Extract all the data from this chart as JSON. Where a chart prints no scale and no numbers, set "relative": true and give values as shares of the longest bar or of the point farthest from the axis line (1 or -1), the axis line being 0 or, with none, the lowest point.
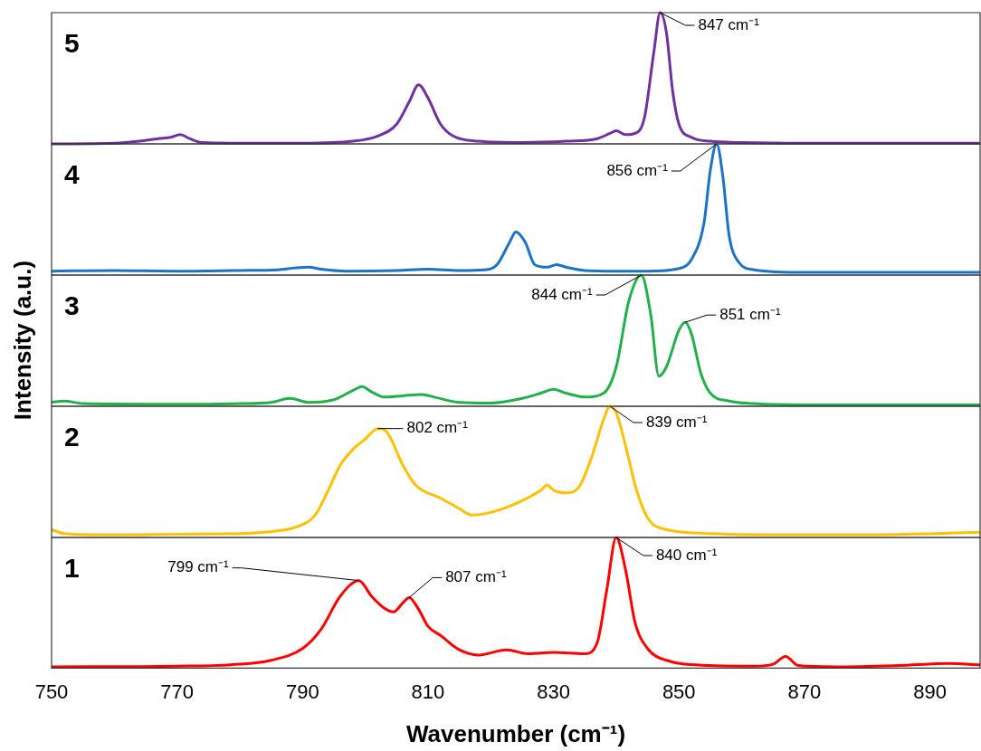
{
  "chart_data": [
    {
      "type": "line",
      "title": "5",
      "relative": true,
      "xlim": [
        750,
        898
      ],
      "tick_labels": false,
      "x": [
        750,
        760,
        764,
        767,
        769,
        770.5,
        772,
        774,
        780,
        790,
        798,
        802,
        805,
        807,
        808.5,
        810,
        812,
        814,
        818,
        825,
        832,
        837,
        839,
        840,
        841.5,
        843,
        844.5,
        846,
        847,
        848,
        849,
        850,
        852,
        855,
        860,
        870,
        898
      ],
      "series": [
        {
          "color": "#7030a0",
          "values": [
            0,
            0.005,
            0.02,
            0.04,
            0.05,
            0.07,
            0.04,
            0.01,
            0.005,
            0.005,
            0.02,
            0.06,
            0.15,
            0.32,
            0.45,
            0.35,
            0.15,
            0.06,
            0.02,
            0.01,
            0.02,
            0.04,
            0.08,
            0.1,
            0.07,
            0.08,
            0.2,
            0.7,
            1,
            0.85,
            0.4,
            0.15,
            0.05,
            0.02,
            0.01,
            0.005,
            0.005
          ]
        }
      ],
      "annotations": [
        {
          "text": "847 cm⁻¹",
          "x": 847,
          "y": 1
        }
      ]
    },
    {
      "type": "line",
      "title": "4",
      "relative": true,
      "xlim": [
        750,
        898
      ],
      "tick_labels": false,
      "x": [
        750,
        760,
        770,
        780,
        786,
        789,
        791,
        793,
        797,
        805,
        810,
        815,
        819,
        821,
        823,
        824,
        825.5,
        827,
        829,
        830.5,
        832,
        835,
        840,
        845,
        850,
        852,
        854,
        855,
        856,
        857,
        858,
        859.5,
        862,
        870,
        880,
        898
      ],
      "series": [
        {
          "color": "#1a73c8",
          "values": [
            0.03,
            0.035,
            0.03,
            0.035,
            0.04,
            0.055,
            0.06,
            0.045,
            0.03,
            0.035,
            0.045,
            0.035,
            0.04,
            0.08,
            0.25,
            0.33,
            0.25,
            0.08,
            0.06,
            0.08,
            0.06,
            0.035,
            0.03,
            0.03,
            0.05,
            0.12,
            0.4,
            0.8,
            1,
            0.75,
            0.3,
            0.1,
            0.04,
            0.02,
            0.02,
            0.02
          ]
        }
      ],
      "annotations": [
        {
          "text": "856 cm⁻¹",
          "x": 856,
          "y": 1
        }
      ]
    },
    {
      "type": "line",
      "title": "3",
      "relative": true,
      "xlim": [
        750,
        898
      ],
      "tick_labels": false,
      "ylabel": "Intensity (a.u.)",
      "x": [
        750,
        752,
        755,
        770,
        780,
        785,
        788,
        791,
        795,
        798,
        799.5,
        801,
        803,
        806,
        809,
        811,
        815,
        820,
        825,
        828,
        830,
        832,
        835,
        838,
        840,
        842,
        844,
        845.5,
        846.8,
        848,
        850,
        851,
        852,
        853.5,
        855,
        858,
        862,
        870,
        898
      ],
      "series": [
        {
          "color": "#22b04b",
          "values": [
            0.03,
            0.04,
            0.02,
            0.015,
            0.02,
            0.03,
            0.06,
            0.03,
            0.05,
            0.12,
            0.15,
            0.11,
            0.07,
            0.08,
            0.09,
            0.07,
            0.03,
            0.025,
            0.06,
            0.1,
            0.13,
            0.1,
            0.07,
            0.1,
            0.3,
            0.8,
            1,
            0.7,
            0.23,
            0.3,
            0.58,
            0.64,
            0.55,
            0.25,
            0.1,
            0.04,
            0.02,
            0.01,
            0.01
          ]
        }
      ],
      "annotations": [
        {
          "text": "844 cm⁻¹",
          "x": 844,
          "y": 1
        },
        {
          "text": "851 cm⁻¹",
          "x": 851,
          "y": 0.64
        }
      ]
    },
    {
      "type": "line",
      "title": "2",
      "relative": true,
      "xlim": [
        750,
        898
      ],
      "tick_labels": false,
      "x": [
        750,
        752,
        760,
        770,
        780,
        786,
        789,
        792,
        794,
        796,
        798,
        800,
        802,
        803.5,
        806,
        808,
        812,
        815,
        817,
        819,
        822,
        825,
        828,
        829,
        830,
        832,
        834,
        836,
        838,
        839,
        840,
        842,
        843,
        845,
        848,
        855,
        870,
        880,
        898
      ],
      "series": [
        {
          "color": "#ffc000",
          "values": [
            0.06,
            0.03,
            0.02,
            0.025,
            0.03,
            0.05,
            0.08,
            0.17,
            0.35,
            0.55,
            0.67,
            0.75,
            0.83,
            0.8,
            0.55,
            0.4,
            0.3,
            0.22,
            0.17,
            0.18,
            0.22,
            0.28,
            0.36,
            0.4,
            0.36,
            0.34,
            0.38,
            0.6,
            0.9,
            1,
            0.95,
            0.6,
            0.4,
            0.15,
            0.06,
            0.03,
            0.02,
            0.02,
            0.04
          ]
        }
      ],
      "annotations": [
        {
          "text": "802 cm⁻¹",
          "x": 802,
          "y": 0.83
        },
        {
          "text": "839 cm⁻¹",
          "x": 839,
          "y": 1
        }
      ]
    },
    {
      "type": "line",
      "title": "1",
      "relative": true,
      "xlim": [
        750,
        898
      ],
      "xticks": [
        750,
        770,
        790,
        810,
        830,
        850,
        870,
        890
      ],
      "tick_labels": "x",
      "xlabel": "Wavenumber (cm⁻¹)",
      "x": [
        750,
        770,
        780,
        785,
        790,
        793,
        796,
        799,
        801,
        803,
        804.5,
        806,
        807,
        808.5,
        810,
        812,
        815,
        818,
        822.5,
        826,
        830,
        835,
        837,
        838.5,
        840,
        841.5,
        843,
        845,
        848,
        855,
        862,
        865,
        867,
        869,
        875,
        885,
        893,
        898
      ],
      "series": [
        {
          "color": "#ff0000",
          "values": [
            0.01,
            0.015,
            0.03,
            0.06,
            0.15,
            0.3,
            0.55,
            0.67,
            0.55,
            0.46,
            0.43,
            0.5,
            0.54,
            0.45,
            0.32,
            0.25,
            0.14,
            0.1,
            0.14,
            0.11,
            0.12,
            0.11,
            0.2,
            0.6,
            1,
            0.75,
            0.35,
            0.15,
            0.06,
            0.02,
            0.015,
            0.03,
            0.09,
            0.02,
            0.01,
            0.02,
            0.035,
            0.025
          ]
        }
      ],
      "annotations": [
        {
          "text": "799 cm⁻¹",
          "x": 799,
          "y": 0.67
        },
        {
          "text": "807 cm⁻¹",
          "x": 807,
          "y": 0.54
        },
        {
          "text": "840 cm⁻¹",
          "x": 840,
          "y": 1
        }
      ]
    }
  ]
}
